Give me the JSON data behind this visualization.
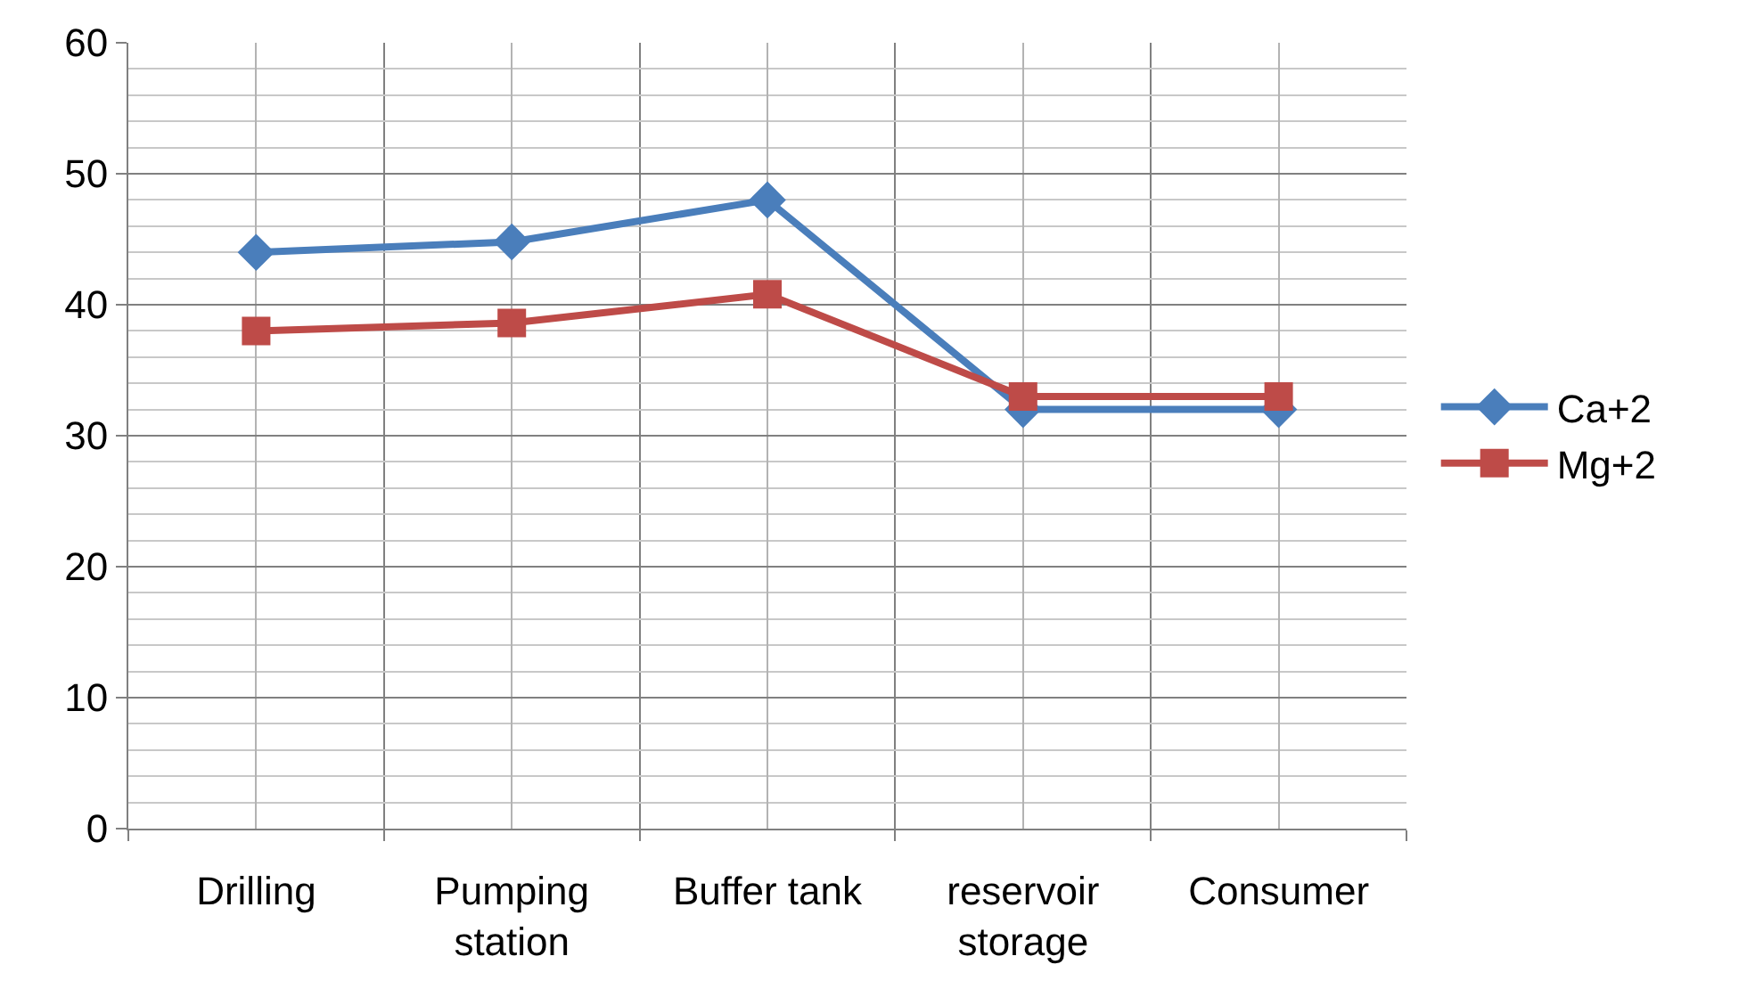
{
  "chart_data": {
    "type": "line",
    "categories": [
      "Drilling",
      "Pumping\nstation",
      "Buffer tank",
      "reservoir\nstorage",
      "Consumer"
    ],
    "series": [
      {
        "name": "Ca+2",
        "color": "#4a7ebb",
        "marker": "diamond",
        "values": [
          44,
          44.8,
          48,
          32,
          32
        ]
      },
      {
        "name": "Mg+2",
        "color": "#be4b48",
        "marker": "square",
        "values": [
          38,
          38.6,
          40.8,
          33,
          33
        ]
      }
    ],
    "ylim": [
      0,
      60
    ],
    "yticks": [
      0,
      10,
      20,
      30,
      40,
      50,
      60
    ],
    "grid": true,
    "legend": "right",
    "line_style": "solid"
  }
}
